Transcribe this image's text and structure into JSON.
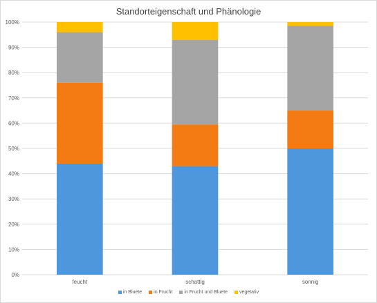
{
  "chart_data": {
    "type": "bar",
    "stacked": true,
    "percent_stacked": true,
    "title": "Standorteigenschaft und Phänologie",
    "categories": [
      "feucht",
      "schattig",
      "sonnig"
    ],
    "series": [
      {
        "name": "in Bluete",
        "values": [
          44,
          43,
          50
        ],
        "color": "#4e97dc"
      },
      {
        "name": "in Frucht",
        "values": [
          32,
          16.5,
          15
        ],
        "color": "#f47b14"
      },
      {
        "name": "in Frucht und Bluete",
        "values": [
          20,
          33.5,
          33.5
        ],
        "color": "#a5a5a5"
      },
      {
        "name": "vegetativ",
        "values": [
          4,
          7,
          1.5
        ],
        "color": "#ffc000"
      }
    ],
    "ylim": [
      0,
      100
    ],
    "yticks": [
      "0%",
      "10%",
      "20%",
      "30%",
      "40%",
      "50%",
      "60%",
      "70%",
      "80%",
      "90%",
      "100%"
    ],
    "grid": true,
    "legend": "bottom"
  }
}
